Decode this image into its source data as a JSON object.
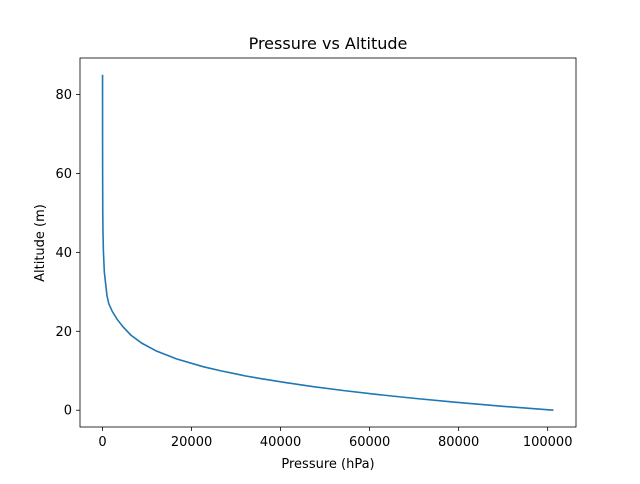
{
  "chart_data": {
    "type": "line",
    "title": "Pressure vs Altitude",
    "xlabel": "Pressure (hPa)",
    "ylabel": "Altitude (m)",
    "xlim": [
      -5065,
      106365
    ],
    "ylim": [
      -4.25,
      89.25
    ],
    "xticks": [
      0,
      20000,
      40000,
      60000,
      80000,
      100000
    ],
    "xtick_labels": [
      "0",
      "20000",
      "40000",
      "60000",
      "80000",
      "100000"
    ],
    "yticks": [
      0,
      20,
      40,
      60,
      80
    ],
    "ytick_labels": [
      "0",
      "20",
      "40",
      "60",
      "80"
    ],
    "grid": false,
    "legend": "none",
    "series": [
      {
        "color": "#1f77b4",
        "points": [
          [
            101300,
            0
          ],
          [
            89900,
            1
          ],
          [
            79500,
            2
          ],
          [
            70100,
            3
          ],
          [
            61640,
            4
          ],
          [
            54050,
            5
          ],
          [
            47200,
            6
          ],
          [
            41100,
            7
          ],
          [
            35650,
            8
          ],
          [
            32000,
            8.7
          ],
          [
            30800,
            9
          ],
          [
            26500,
            10
          ],
          [
            22700,
            11
          ],
          [
            16600,
            13
          ],
          [
            12100,
            15
          ],
          [
            8800,
            17
          ],
          [
            6400,
            19
          ],
          [
            4700,
            21
          ],
          [
            3300,
            23
          ],
          [
            2200,
            25
          ],
          [
            1400,
            27
          ],
          [
            1000,
            29
          ],
          [
            800,
            31
          ],
          [
            400,
            35
          ],
          [
            200,
            40
          ],
          [
            100,
            45
          ],
          [
            50,
            50
          ],
          [
            20,
            60
          ],
          [
            5,
            70
          ],
          [
            1,
            80
          ],
          [
            0.4,
            85
          ]
        ]
      }
    ]
  }
}
